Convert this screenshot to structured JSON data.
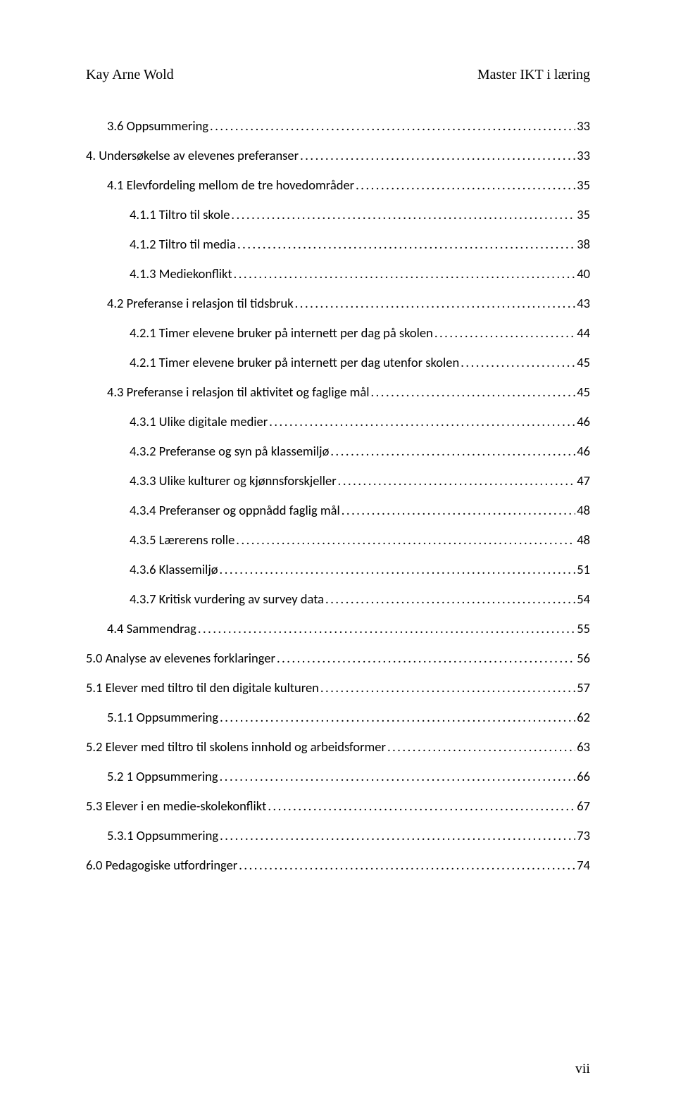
{
  "header": {
    "left": "Kay Arne Wold",
    "right": "Master IKT i læring"
  },
  "toc": [
    {
      "indent": 1,
      "title": "3.6 Oppsummering",
      "page": "33"
    },
    {
      "indent": 0,
      "title": "4. Undersøkelse av elevenes preferanser",
      "page": "33"
    },
    {
      "indent": 1,
      "title": "4.1 Elevfordeling mellom de tre hovedområder",
      "page": "35"
    },
    {
      "indent": 2,
      "title": "4.1.1 Tiltro til skole",
      "page": "35"
    },
    {
      "indent": 2,
      "title": "4.1.2 Tiltro til media",
      "page": "38"
    },
    {
      "indent": 2,
      "title": "4.1.3 Mediekonflikt",
      "page": "40"
    },
    {
      "indent": 1,
      "title": "4.2 Preferanse i relasjon til tidsbruk",
      "page": "43"
    },
    {
      "indent": 2,
      "title": "4.2.1 Timer elevene bruker på internett per dag på skolen",
      "page": "44"
    },
    {
      "indent": 2,
      "title": "4.2.1 Timer elevene bruker på internett per dag utenfor skolen",
      "page": "45"
    },
    {
      "indent": 1,
      "title": "4.3 Preferanse i relasjon til aktivitet og faglige mål",
      "page": "45"
    },
    {
      "indent": 2,
      "title": "4.3.1 Ulike digitale medier",
      "page": "46"
    },
    {
      "indent": 2,
      "title": "4.3.2 Preferanse og syn på klassemiljø",
      "page": "46"
    },
    {
      "indent": 2,
      "title": "4.3.3 Ulike kulturer og kjønnsforskjeller",
      "page": "47"
    },
    {
      "indent": 2,
      "title": "4.3.4 Preferanser og oppnådd faglig mål",
      "page": "48"
    },
    {
      "indent": 2,
      "title": "4.3.5 Lærerens rolle",
      "page": "48"
    },
    {
      "indent": 2,
      "title": "4.3.6 Klassemiljø",
      "page": "51"
    },
    {
      "indent": 2,
      "title": "4.3.7 Kritisk vurdering av survey data",
      "page": "54"
    },
    {
      "indent": 1,
      "title": "4.4 Sammendrag",
      "page": "55"
    },
    {
      "indent": 0,
      "title": "5.0 Analyse av elevenes forklaringer",
      "page": "56"
    },
    {
      "indent": 0,
      "title": "5.1 Elever med tiltro til den digitale kulturen",
      "page": "57"
    },
    {
      "indent": 1,
      "title": "5.1.1 Oppsummering",
      "page": "62"
    },
    {
      "indent": 0,
      "title": "5.2 Elever med tiltro til skolens innhold og arbeidsformer",
      "page": "63"
    },
    {
      "indent": 1,
      "title": "5.2 1 Oppsummering",
      "page": "66"
    },
    {
      "indent": 0,
      "title": "5.3 Elever i en medie-skolekonflikt",
      "page": "67"
    },
    {
      "indent": 1,
      "title": "5.3.1 Oppsummering",
      "page": "73"
    },
    {
      "indent": 0,
      "title": "6.0 Pedagogiske utfordringer",
      "page": "74"
    }
  ],
  "footer": {
    "page_number": "vii"
  }
}
